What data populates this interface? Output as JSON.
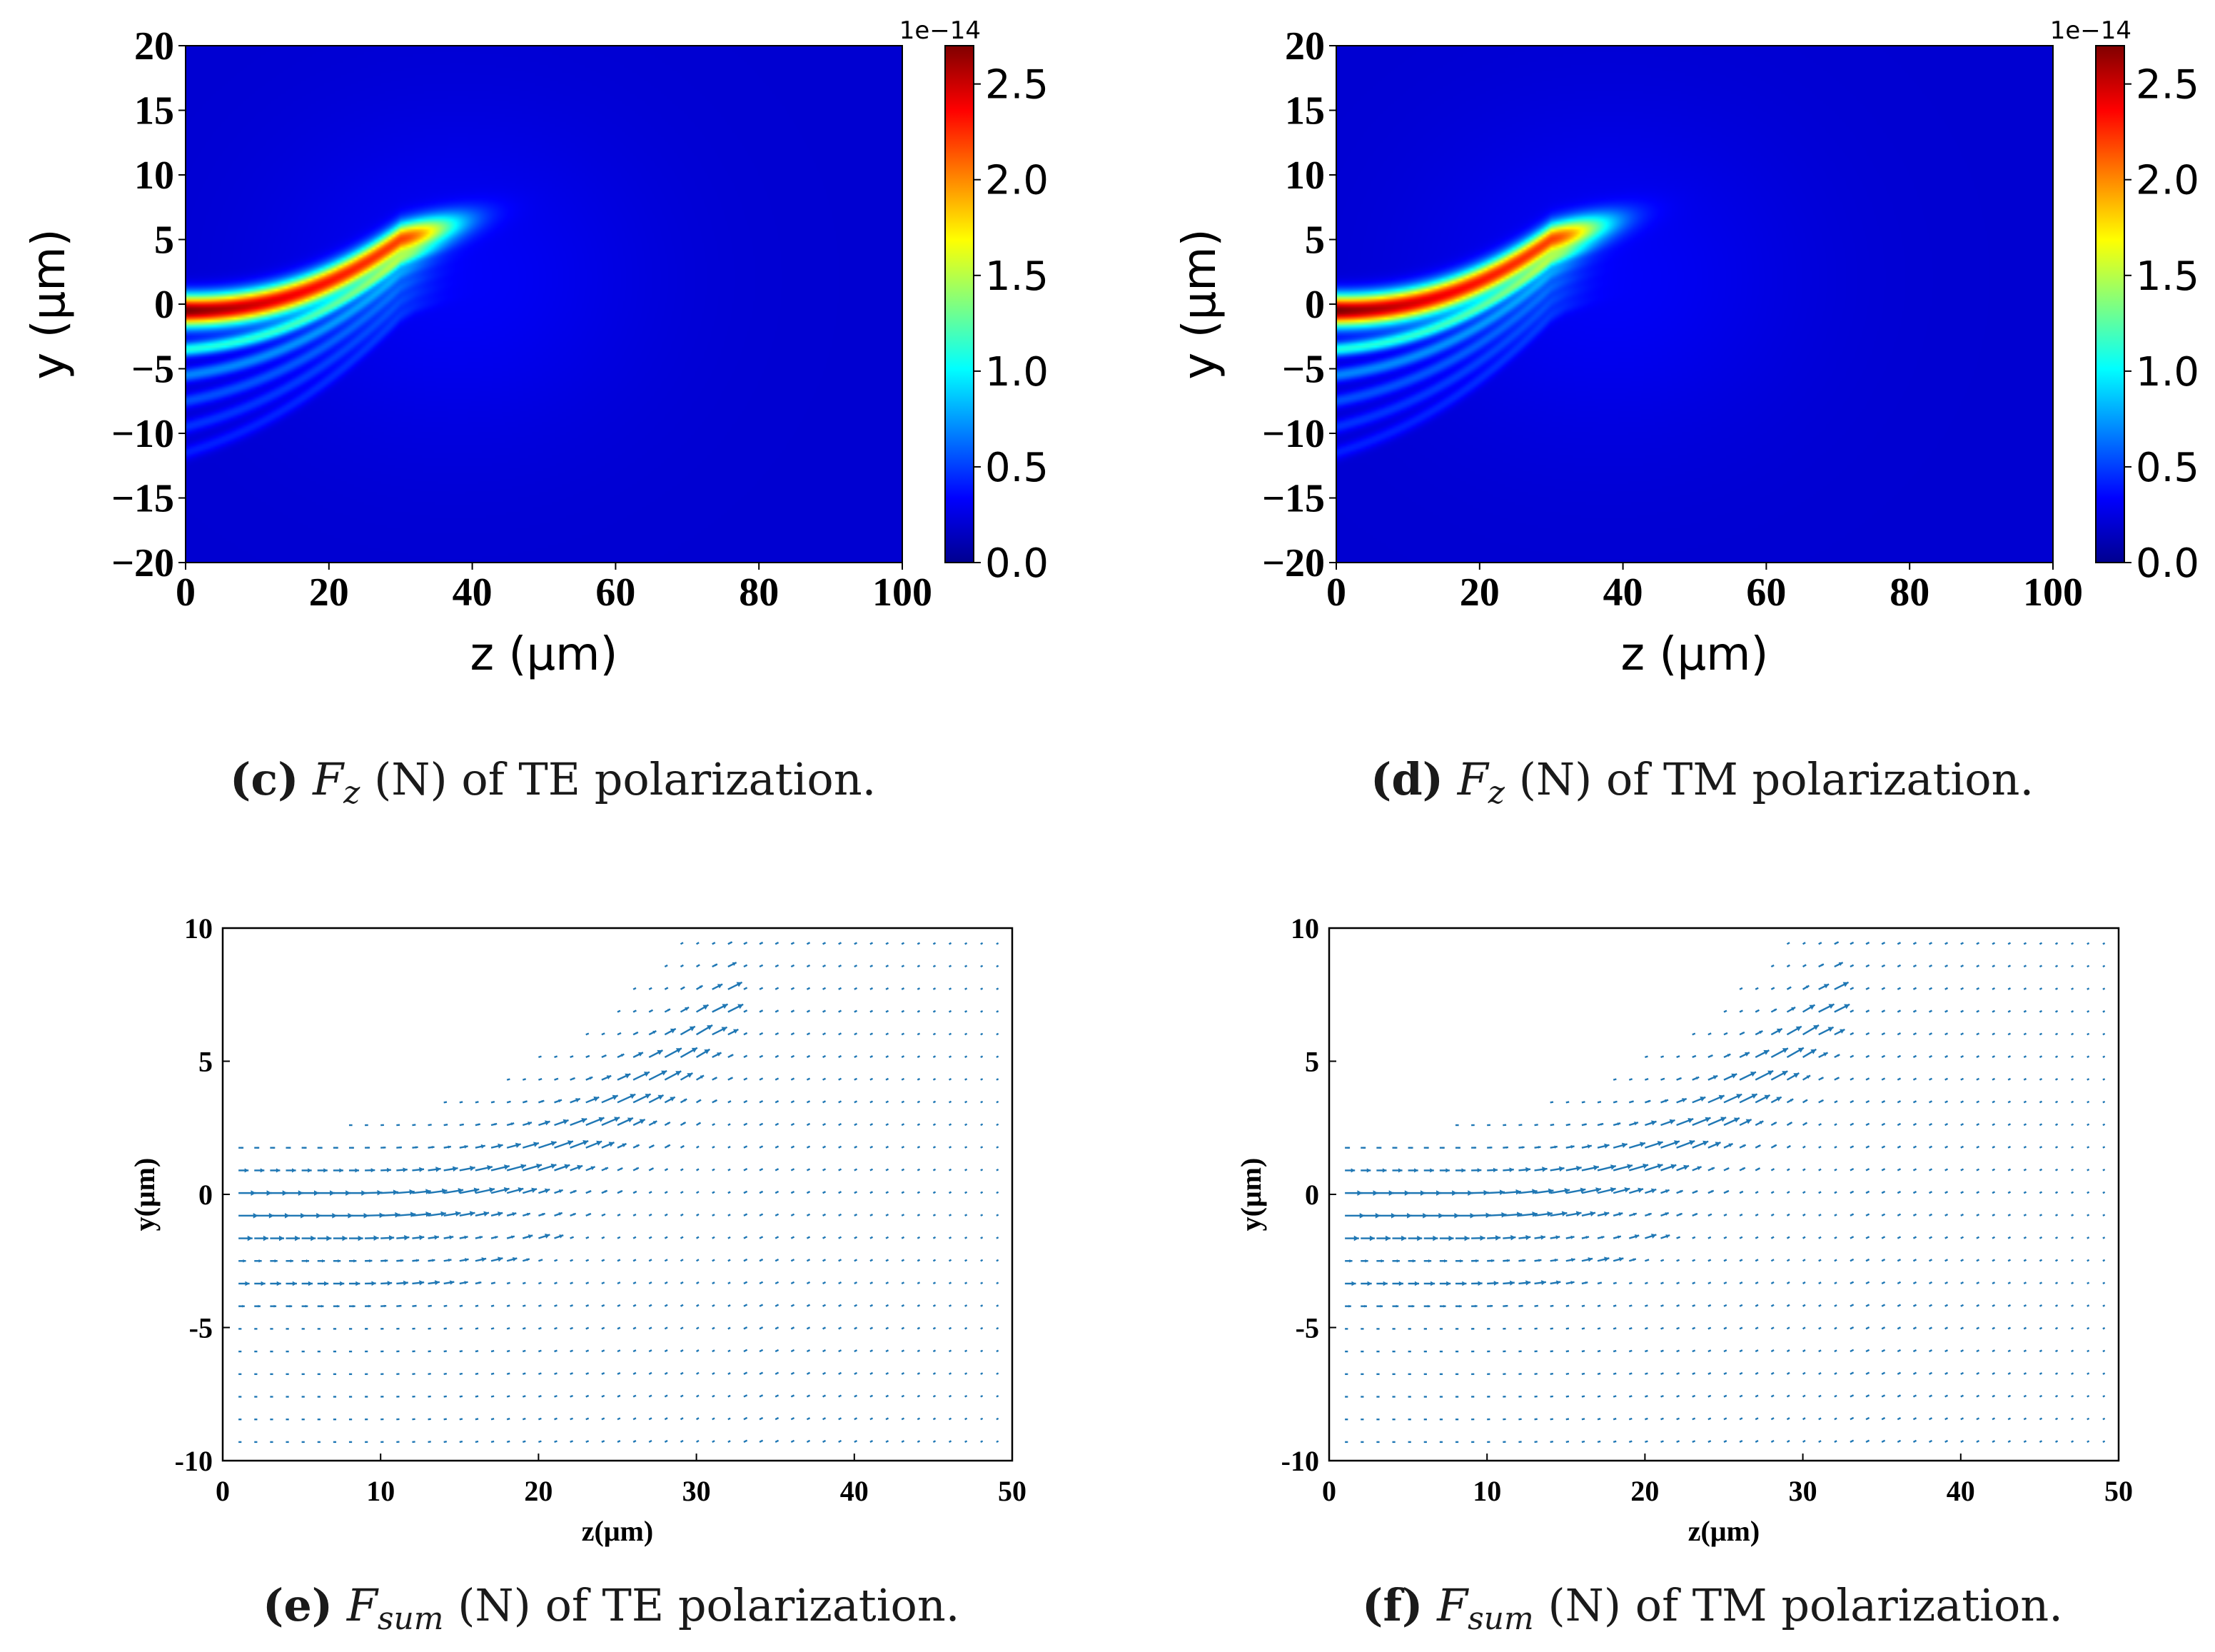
{
  "colors": {
    "quiver_arrow": "#1f77b4",
    "heatmap_low": "#00008f",
    "heatmap_high": "#800000",
    "axis": "#000000"
  },
  "captions": [
    {
      "label": "(c)",
      "symbol": "F",
      "subscript": "z",
      "text": "(N) of TE polarization."
    },
    {
      "label": "(d)",
      "symbol": "F",
      "subscript": "z",
      "text": "(N) of TM polarization."
    },
    {
      "label": "(e)",
      "symbol": "F",
      "subscript": "sum",
      "text": "(N) of TE polarization."
    },
    {
      "label": "(f)",
      "symbol": "F",
      "subscript": "sum",
      "text": "(N) of TM polarization."
    }
  ],
  "chart_data": [
    {
      "id": "c",
      "type": "heatmap",
      "xlabel": "z (μm)",
      "ylabel": "y (μm)",
      "xlim": [
        0,
        100
      ],
      "ylim": [
        -20,
        20
      ],
      "xticks": [
        0,
        20,
        40,
        60,
        80,
        100
      ],
      "yticks": [
        20,
        15,
        10,
        5,
        0,
        -5,
        -10,
        -15,
        -20
      ],
      "ytick_labels": [
        "20",
        "15",
        "10",
        "5",
        "0",
        "−5",
        "−10",
        "−15",
        "−20"
      ],
      "colormap": "jet",
      "colorbar": {
        "min": 0.0,
        "max": 2.7,
        "ticks": [
          "0.0",
          "0.5",
          "1.0",
          "1.5",
          "2.0",
          "2.5"
        ],
        "exponent_label": "1e−14"
      },
      "beam": {
        "center_y_start": -0.5,
        "width": 1.2,
        "peak": 2.7,
        "bend_start_z": 0,
        "bend_end_z": 30,
        "bend_end_y": 5,
        "secondary_fringe_y": [
          -3.5,
          -5.5,
          -7.5,
          -9.5,
          -11.5
        ]
      }
    },
    {
      "id": "d",
      "type": "heatmap",
      "xlabel": "z (μm)",
      "ylabel": "y (μm)",
      "xlim": [
        0,
        100
      ],
      "ylim": [
        -20,
        20
      ],
      "xticks": [
        0,
        20,
        40,
        60,
        80,
        100
      ],
      "yticks": [
        20,
        15,
        10,
        5,
        0,
        -5,
        -10,
        -15,
        -20
      ],
      "ytick_labels": [
        "20",
        "15",
        "10",
        "5",
        "0",
        "−5",
        "−10",
        "−15",
        "−20"
      ],
      "colormap": "jet",
      "colorbar": {
        "min": 0.0,
        "max": 2.7,
        "ticks": [
          "0.0",
          "0.5",
          "1.0",
          "1.5",
          "2.0",
          "2.5"
        ],
        "exponent_label": "1e−14"
      },
      "beam": {
        "center_y_start": -0.5,
        "width": 1.2,
        "peak": 2.7,
        "bend_start_z": 0,
        "bend_end_z": 30,
        "bend_end_y": 5,
        "secondary_fringe_y": [
          -3.5,
          -5.5,
          -7.5,
          -9.5,
          -11.5
        ]
      }
    },
    {
      "id": "e",
      "type": "scatter",
      "subtype": "quiver",
      "xlabel": "z(μm)",
      "ylabel": "y(μm)",
      "xlim": [
        0,
        50
      ],
      "ylim": [
        -10,
        10
      ],
      "xticks": [
        0,
        10,
        20,
        30,
        40,
        50
      ],
      "yticks": [
        10,
        5,
        0,
        -5,
        -10
      ],
      "ytick_labels": [
        "10",
        "5",
        "0",
        "-5",
        "-10"
      ],
      "grid_spacing": 1
    },
    {
      "id": "f",
      "type": "scatter",
      "subtype": "quiver",
      "xlabel": "z(μm)",
      "ylabel": "y(μm)",
      "xlim": [
        0,
        50
      ],
      "ylim": [
        -10,
        10
      ],
      "xticks": [
        0,
        10,
        20,
        30,
        40,
        50
      ],
      "yticks": [
        10,
        5,
        0,
        -5,
        -10
      ],
      "ytick_labels": [
        "10",
        "5",
        "0",
        "-5",
        "-10"
      ],
      "grid_spacing": 1
    }
  ]
}
